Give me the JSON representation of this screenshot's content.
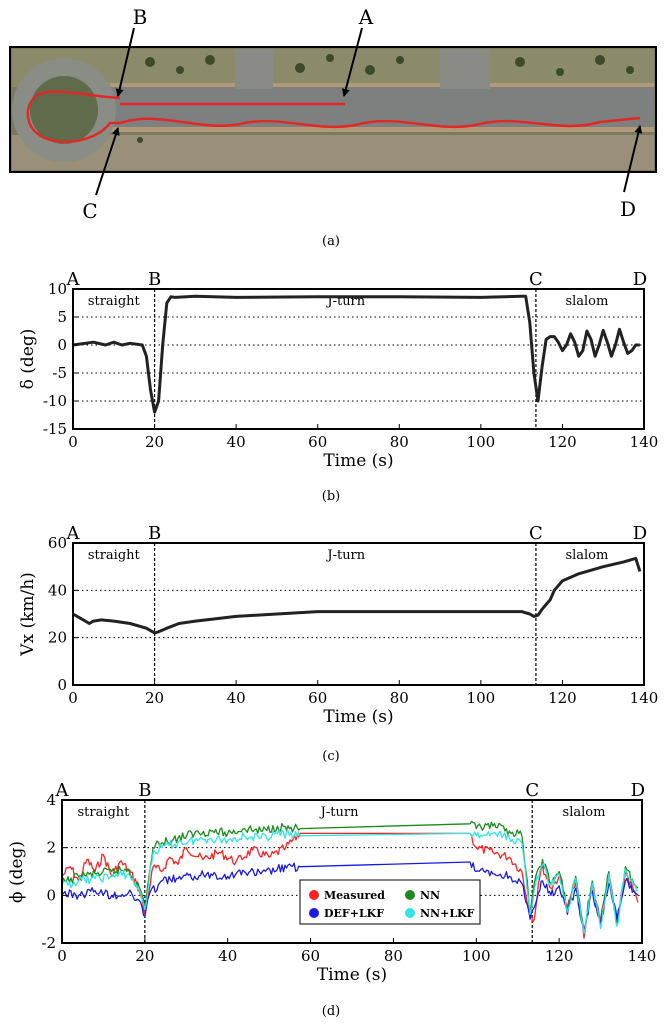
{
  "figure": {
    "caption_a": "(a)",
    "caption_b": "(b)",
    "caption_c": "(c)",
    "caption_d": "(d)",
    "aerial_markers": [
      "A",
      "B",
      "C",
      "D"
    ],
    "track_color": "#e02828"
  },
  "chart_data": [
    {
      "id": "b",
      "type": "line",
      "title": "",
      "xlabel": "Time (s)",
      "ylabel": "δ (deg)",
      "xlim": [
        0,
        140
      ],
      "ylim": [
        -15,
        10
      ],
      "xticks": [
        0,
        20,
        40,
        60,
        80,
        100,
        120,
        140
      ],
      "yticks": [
        -15,
        -10,
        -5,
        0,
        5,
        10
      ],
      "grid": "dotted horizontal",
      "markers": [
        {
          "label": "A",
          "x": 0
        },
        {
          "label": "B",
          "x": 20
        },
        {
          "label": "C",
          "x": 113.5
        },
        {
          "label": "D",
          "x": 139
        }
      ],
      "phases": [
        {
          "label": "straight",
          "x": 10
        },
        {
          "label": "J-turn",
          "x": 67
        },
        {
          "label": "slalom",
          "x": 126
        }
      ],
      "series": [
        {
          "name": "δ",
          "color": "#222222",
          "x": [
            0,
            5,
            8,
            10,
            12,
            14,
            17,
            18,
            19,
            20,
            21,
            22,
            23,
            24,
            25,
            30,
            40,
            60,
            80,
            100,
            110,
            111,
            112,
            113,
            114,
            115,
            116,
            117,
            118,
            119,
            120,
            121,
            122,
            123,
            124,
            125,
            126,
            127,
            128,
            129,
            130,
            131,
            132,
            133,
            134,
            135,
            136,
            137,
            138,
            139
          ],
          "values": [
            0,
            0.5,
            0,
            0.5,
            0,
            0.3,
            0,
            -2,
            -8,
            -12,
            -10,
            0,
            7.5,
            8.6,
            8.5,
            8.7,
            8.5,
            8.6,
            8.6,
            8.5,
            8.7,
            8.7,
            4,
            -5,
            -10,
            -4,
            1,
            1.5,
            1.5,
            0.5,
            -1,
            0,
            2,
            0.5,
            -2,
            -1,
            2.5,
            1,
            -2,
            0,
            2.6,
            0.5,
            -2,
            0,
            2.8,
            0.5,
            -1.5,
            -1,
            0,
            0
          ]
        }
      ]
    },
    {
      "id": "c",
      "type": "line",
      "title": "",
      "xlabel": "Time (s)",
      "ylabel": "Vx (km/h)",
      "xlim": [
        0,
        140
      ],
      "ylim": [
        0,
        60
      ],
      "xticks": [
        0,
        20,
        40,
        60,
        80,
        100,
        120,
        140
      ],
      "yticks": [
        0,
        20,
        40,
        60
      ],
      "grid": "dotted horizontal",
      "markers": [
        {
          "label": "A",
          "x": 0
        },
        {
          "label": "B",
          "x": 20
        },
        {
          "label": "C",
          "x": 113.5
        },
        {
          "label": "D",
          "x": 139
        }
      ],
      "phases": [
        {
          "label": "straight",
          "x": 10
        },
        {
          "label": "J-turn",
          "x": 67
        },
        {
          "label": "slalom",
          "x": 126
        }
      ],
      "series": [
        {
          "name": "Vx",
          "color": "#222222",
          "x": [
            0,
            2,
            4,
            5,
            7,
            10,
            14,
            18,
            20,
            21,
            23,
            26,
            30,
            35,
            40,
            50,
            60,
            80,
            100,
            110,
            112,
            113,
            114,
            115,
            116,
            117,
            118,
            120,
            124,
            130,
            135,
            137,
            138,
            139
          ],
          "values": [
            30,
            28,
            26,
            27,
            27.5,
            27,
            26,
            24,
            22,
            22.5,
            24,
            26,
            27,
            28,
            29,
            30,
            31,
            31,
            31,
            31,
            30,
            29,
            29.5,
            32,
            34,
            36,
            40,
            44,
            47,
            50,
            52,
            53,
            53.5,
            48
          ]
        }
      ]
    },
    {
      "id": "d",
      "type": "line",
      "title": "",
      "xlabel": "Time (s)",
      "ylabel": "ϕ (deg)",
      "xlim": [
        0,
        140
      ],
      "ylim": [
        -2,
        4
      ],
      "xticks": [
        0,
        20,
        40,
        60,
        80,
        100,
        120,
        140
      ],
      "yticks": [
        -2,
        0,
        2,
        4
      ],
      "grid": "dotted horizontal",
      "markers": [
        {
          "label": "A",
          "x": 0
        },
        {
          "label": "B",
          "x": 20
        },
        {
          "label": "C",
          "x": 113.5
        },
        {
          "label": "D",
          "x": 139
        }
      ],
      "phases": [
        {
          "label": "straight",
          "x": 10
        },
        {
          "label": "J-turn",
          "x": 67
        },
        {
          "label": "slalom",
          "x": 126
        }
      ],
      "legend": {
        "placement": "bottom-center"
      },
      "series": [
        {
          "name": "Measured",
          "color": "#ff2020",
          "x": [
            0,
            2,
            4,
            6,
            8,
            10,
            12,
            14,
            16,
            18,
            19,
            20,
            21,
            22,
            24,
            26,
            28,
            30,
            34,
            38,
            42,
            46,
            50,
            54,
            57.5,
            98.5,
            100,
            104,
            108,
            111,
            112,
            113,
            114,
            115,
            116,
            118,
            120,
            122,
            124,
            126,
            128,
            130,
            132,
            134,
            136,
            138,
            139
          ],
          "values": [
            0.8,
            1.2,
            0.6,
            1.5,
            1.0,
            1.7,
            0.8,
            1.4,
            1.1,
            0.5,
            0,
            -0.8,
            0.2,
            1.2,
            1.0,
            1.6,
            1.3,
            2.0,
            1.5,
            1.8,
            1.4,
            1.9,
            1.6,
            2.0,
            2.6,
            2.6,
            2.0,
            1.8,
            1.6,
            1.0,
            0,
            -0.8,
            -1.0,
            0.5,
            1.2,
            0.3,
            0.8,
            -0.5,
            0.5,
            -1.8,
            0.5,
            -1.0,
            0.8,
            -1.2,
            1.0,
            0.2,
            -0.3
          ]
        },
        {
          "name": "NN",
          "color": "#1e8a1e",
          "x": [
            0,
            4,
            8,
            12,
            16,
            19,
            20,
            21,
            22,
            24,
            28,
            32,
            36,
            40,
            44,
            48,
            52,
            56,
            57.5,
            98.5,
            100,
            104,
            108,
            111,
            112,
            113,
            114,
            116,
            118,
            120,
            122,
            124,
            126,
            128,
            130,
            132,
            134,
            136,
            138,
            139
          ],
          "values": [
            0.5,
            0.8,
            0.9,
            1.0,
            1.1,
            0.2,
            -0.5,
            0.8,
            2.0,
            2.2,
            2.4,
            2.6,
            2.7,
            2.6,
            2.8,
            2.7,
            2.9,
            2.8,
            2.8,
            3.0,
            2.8,
            2.9,
            2.7,
            2.5,
            1.0,
            -0.7,
            0.5,
            1.5,
            0.5,
            1.0,
            -0.6,
            0.8,
            -1.5,
            0.6,
            -1.3,
            1.0,
            -1.2,
            1.2,
            0.5,
            0.3
          ]
        },
        {
          "name": "DEF+LKF",
          "color": "#1a1ae6",
          "x": [
            0,
            4,
            8,
            12,
            16,
            19,
            20,
            21,
            24,
            28,
            32,
            36,
            40,
            44,
            48,
            52,
            57.5,
            98.5,
            100,
            104,
            108,
            111,
            112,
            113,
            114,
            116,
            118,
            120,
            122,
            124,
            126,
            128,
            130,
            132,
            134,
            136,
            138,
            139
          ],
          "values": [
            0.1,
            0.0,
            0.2,
            0.0,
            0.1,
            -0.3,
            -0.9,
            0.0,
            0.6,
            0.7,
            0.8,
            0.9,
            0.8,
            1.0,
            0.9,
            1.1,
            1.2,
            1.4,
            1.0,
            0.9,
            0.8,
            0.5,
            -0.3,
            -1.0,
            -0.5,
            0.6,
            0.0,
            0.4,
            -0.8,
            0.3,
            -1.5,
            0.2,
            -1.2,
            0.5,
            -1.0,
            0.6,
            0.2,
            0.0
          ]
        },
        {
          "name": "NN+LKF",
          "color": "#2ee6e6",
          "x": [
            0,
            4,
            8,
            12,
            16,
            19,
            20,
            21,
            22,
            24,
            28,
            32,
            36,
            40,
            44,
            48,
            52,
            56,
            57.5,
            98.5,
            100,
            104,
            108,
            111,
            112,
            113,
            114,
            116,
            118,
            120,
            122,
            124,
            126,
            128,
            130,
            132,
            134,
            136,
            138,
            139
          ],
          "values": [
            0.4,
            0.6,
            0.7,
            0.8,
            0.9,
            0.1,
            -0.6,
            0.6,
            1.8,
            2.0,
            2.2,
            2.3,
            2.4,
            2.3,
            2.5,
            2.4,
            2.6,
            2.5,
            2.5,
            2.6,
            2.5,
            2.6,
            2.4,
            2.2,
            0.8,
            -0.8,
            0.3,
            1.3,
            0.4,
            0.9,
            -0.7,
            0.7,
            -1.6,
            0.5,
            -1.4,
            0.9,
            -1.3,
            1.1,
            0.4,
            0.2
          ]
        }
      ]
    }
  ]
}
